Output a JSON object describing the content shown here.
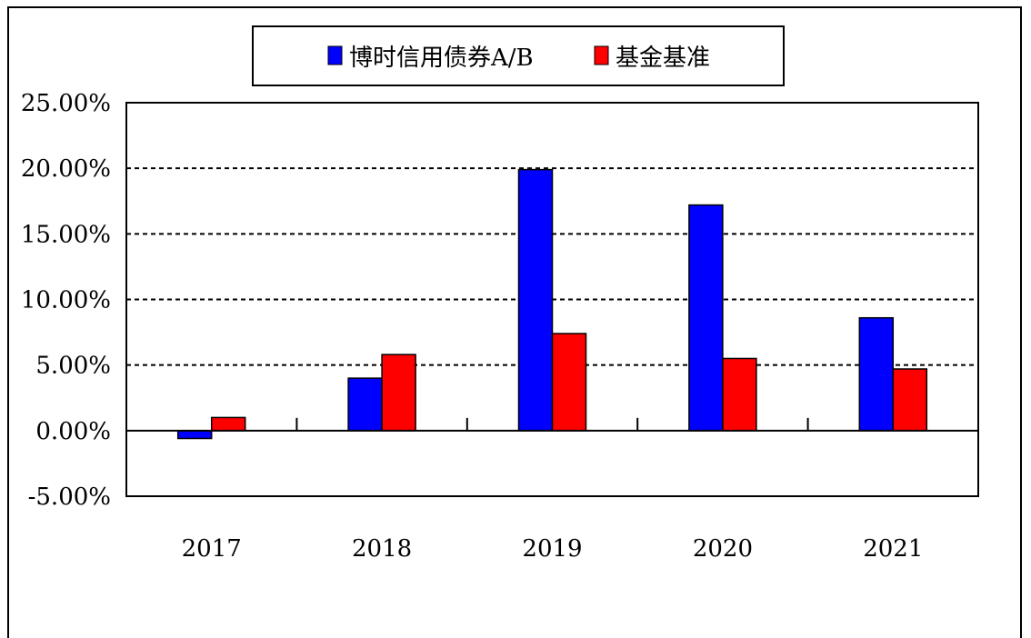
{
  "chart_data": {
    "type": "bar",
    "categories": [
      "2017",
      "2018",
      "2019",
      "2020",
      "2021"
    ],
    "series": [
      {
        "name": "博时信用债券A/B",
        "color": "#0000ff",
        "values": [
          -0.6,
          4.0,
          19.9,
          17.2,
          8.6
        ]
      },
      {
        "name": "基金基准",
        "color": "#ff0000",
        "values": [
          1.0,
          5.8,
          7.4,
          5.5,
          4.7
        ]
      }
    ],
    "ylim": [
      -5,
      25
    ],
    "yticks": [
      "25.00%",
      "20.00%",
      "15.00%",
      "10.00%",
      "5.00%",
      "0.00%",
      "-5.00%"
    ],
    "ytick_values": [
      25,
      20,
      15,
      10,
      5,
      0,
      -5
    ],
    "grid": "dashed horizontal",
    "legend_position": "top-center"
  }
}
